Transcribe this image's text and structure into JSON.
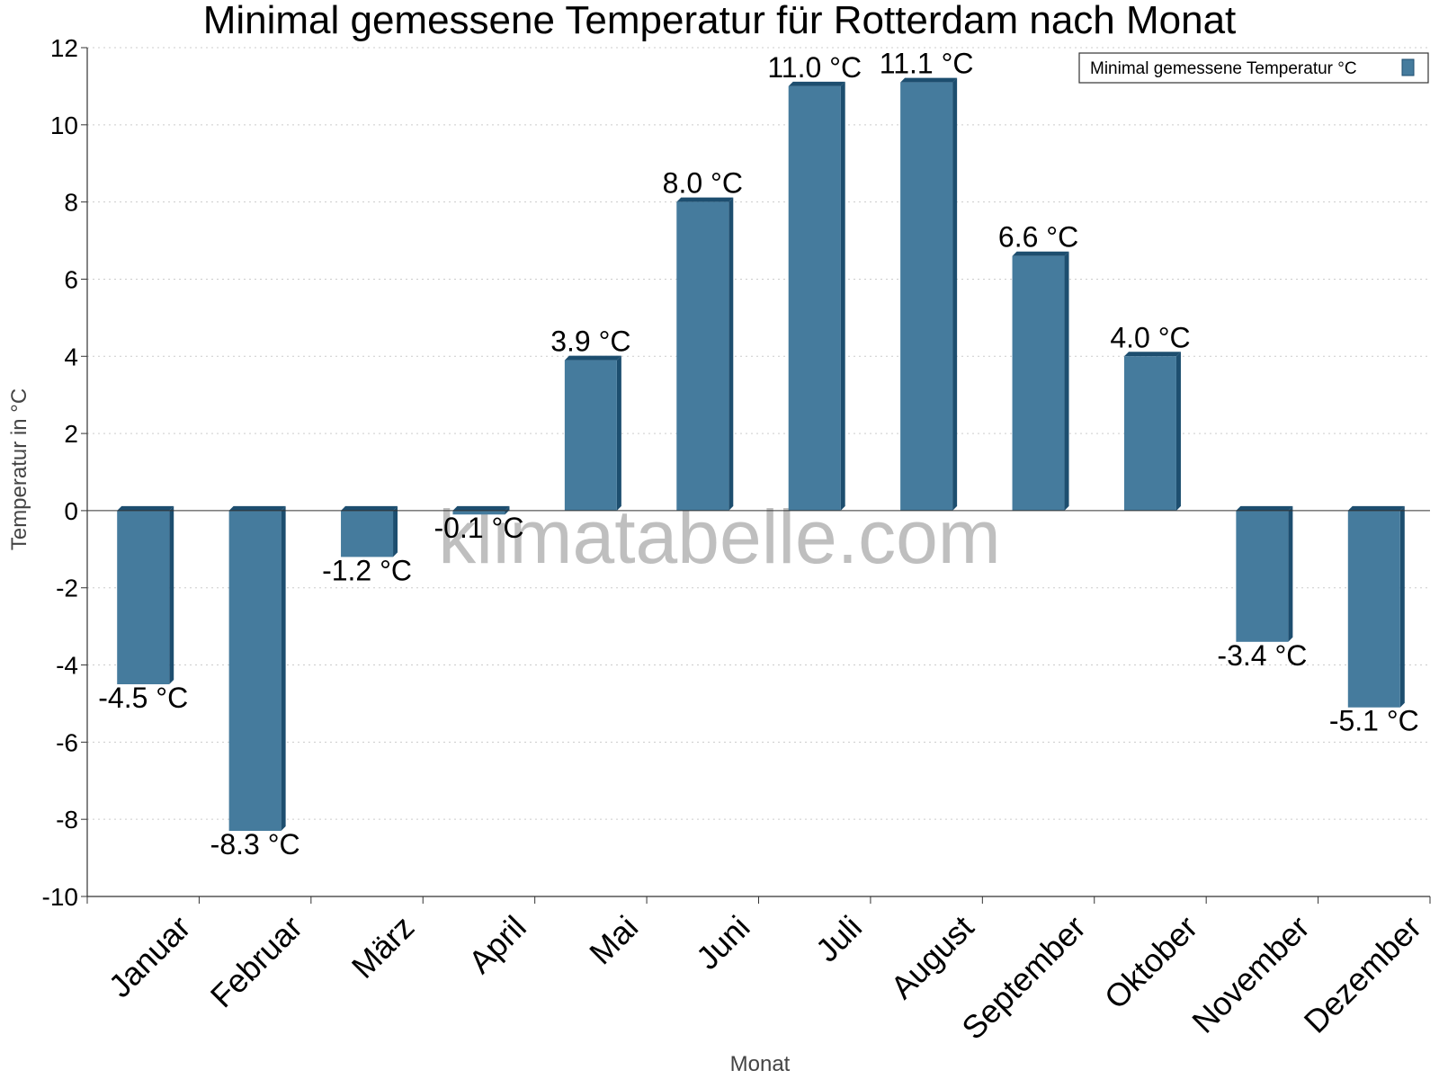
{
  "watermark": "klimatabelle.com",
  "colors": {
    "bar_front": "#457b9d",
    "bar_side": "#1d4e6f",
    "bar_top": "#1d4e6f",
    "grid": "#cccccc",
    "axis": "#333333"
  },
  "chart_data": {
    "type": "bar",
    "title": "Minimal gemessene Temperatur für Rotterdam nach Monat",
    "xlabel": "Monat",
    "ylabel": "Temperatur in °C",
    "categories": [
      "Januar",
      "Februar",
      "März",
      "April",
      "Mai",
      "Juni",
      "Juli",
      "August",
      "September",
      "Oktober",
      "November",
      "Dezember"
    ],
    "series": [
      {
        "name": "Minimal gemessene Temperatur °C",
        "values": [
          -4.5,
          -8.3,
          -1.2,
          -0.1,
          3.9,
          8.0,
          11.0,
          11.1,
          6.6,
          4.0,
          -3.4,
          -5.1
        ]
      }
    ],
    "data_labels": [
      "-4.5 °C",
      "-8.3 °C",
      "-1.2 °C",
      "-0.1 °C",
      "3.9 °C",
      "8.0 °C",
      "11.0 °C",
      "11.1 °C",
      "6.6 °C",
      "4.0 °C",
      "-3.4 °C",
      "-5.1 °C"
    ],
    "yticks": [
      12,
      10,
      8,
      6,
      4,
      2,
      0,
      -2,
      -4,
      -6,
      -8,
      -10
    ],
    "ylim": [
      -10,
      12
    ],
    "grid": true,
    "legend": "top-right"
  }
}
